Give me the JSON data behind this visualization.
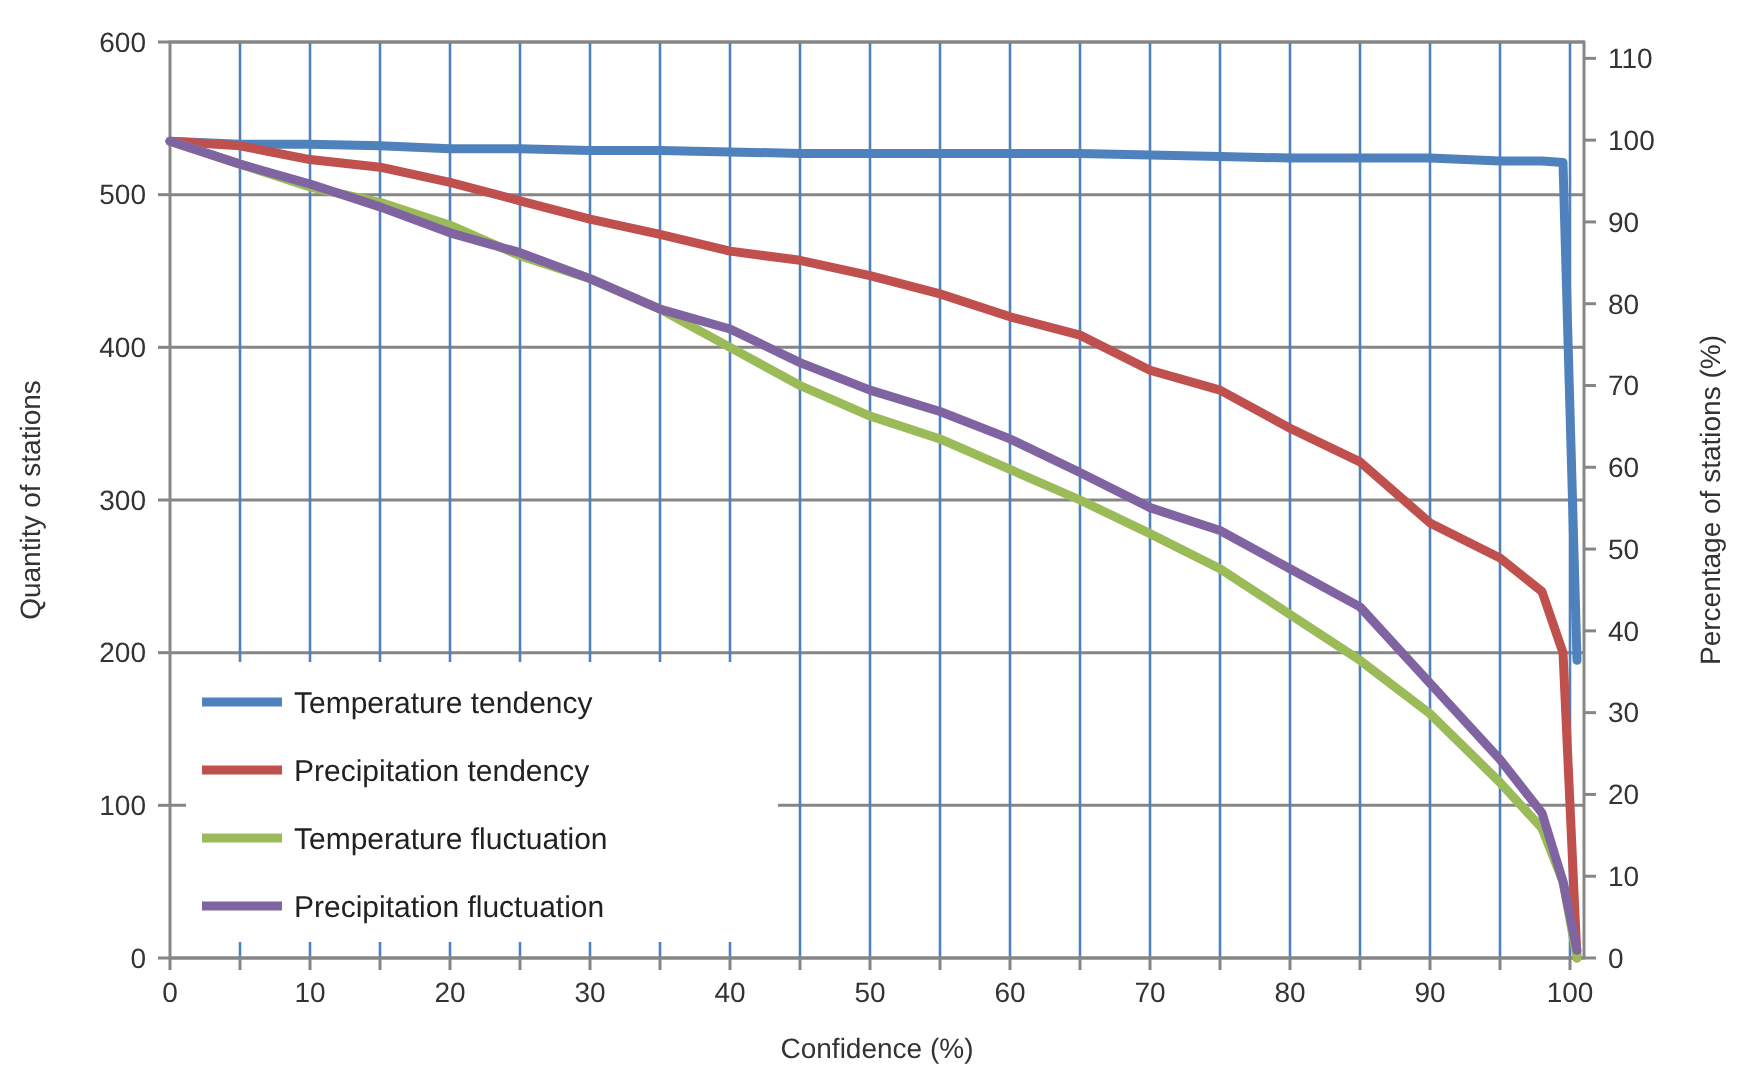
{
  "chart_data": {
    "type": "line",
    "xlabel": "Confidence (%)",
    "ylabel": "Quantity of stations",
    "y2label": "Percentage of stations  (%)",
    "x": [
      0,
      5,
      10,
      15,
      20,
      25,
      30,
      35,
      40,
      45,
      50,
      55,
      60,
      65,
      70,
      75,
      80,
      85,
      90,
      95,
      98,
      99.5,
      100.5
    ],
    "series": [
      {
        "name": "Temperature tendency",
        "color": "#4f81bd",
        "values": [
          535,
          533,
          533,
          532,
          530,
          530,
          529,
          529,
          528,
          527,
          527,
          527,
          527,
          527,
          526,
          525,
          524,
          524,
          524,
          522,
          522,
          521,
          195
        ]
      },
      {
        "name": "Precipitation tendency",
        "color": "#c0504d",
        "values": [
          535,
          532,
          523,
          518,
          508,
          496,
          484,
          474,
          463,
          457,
          447,
          435,
          420,
          408,
          385,
          372,
          347,
          325,
          285,
          262,
          240,
          200,
          0
        ]
      },
      {
        "name": "Temperature fluctuation",
        "color": "#9bbb59",
        "values": [
          535,
          520,
          505,
          495,
          480,
          460,
          445,
          425,
          400,
          375,
          355,
          340,
          320,
          300,
          278,
          255,
          225,
          195,
          160,
          115,
          85,
          50,
          0
        ]
      },
      {
        "name": "Precipitation fluctuation",
        "color": "#8064a2",
        "values": [
          535,
          520,
          507,
          492,
          475,
          462,
          445,
          425,
          412,
          390,
          372,
          358,
          340,
          318,
          295,
          280,
          255,
          230,
          180,
          130,
          95,
          50,
          5
        ]
      }
    ],
    "xlim": [
      0,
      101
    ],
    "xticks": [
      0,
      {
        "value": 5,
        "label": null
      },
      10,
      {
        "value": 15,
        "label": null
      },
      20,
      {
        "value": 25,
        "label": null
      },
      30,
      {
        "value": 35,
        "label": null
      },
      40,
      {
        "value": 45,
        "label": null
      },
      50,
      {
        "value": 55,
        "label": null
      },
      60,
      {
        "value": 65,
        "label": null
      },
      70,
      {
        "value": 75,
        "label": null
      },
      80,
      {
        "value": 85,
        "label": null
      },
      90,
      {
        "value": 95,
        "label": null
      },
      100
    ],
    "ylim": [
      0,
      600
    ],
    "yticks": [
      0,
      100,
      200,
      300,
      400,
      500,
      600
    ],
    "y2lim": [
      0,
      112
    ],
    "y2ticks": [
      0,
      10,
      20,
      30,
      40,
      50,
      60,
      70,
      80,
      90,
      100,
      110
    ],
    "grid": true,
    "legend": "bottom left",
    "marker": "none",
    "line_style": "solid"
  }
}
